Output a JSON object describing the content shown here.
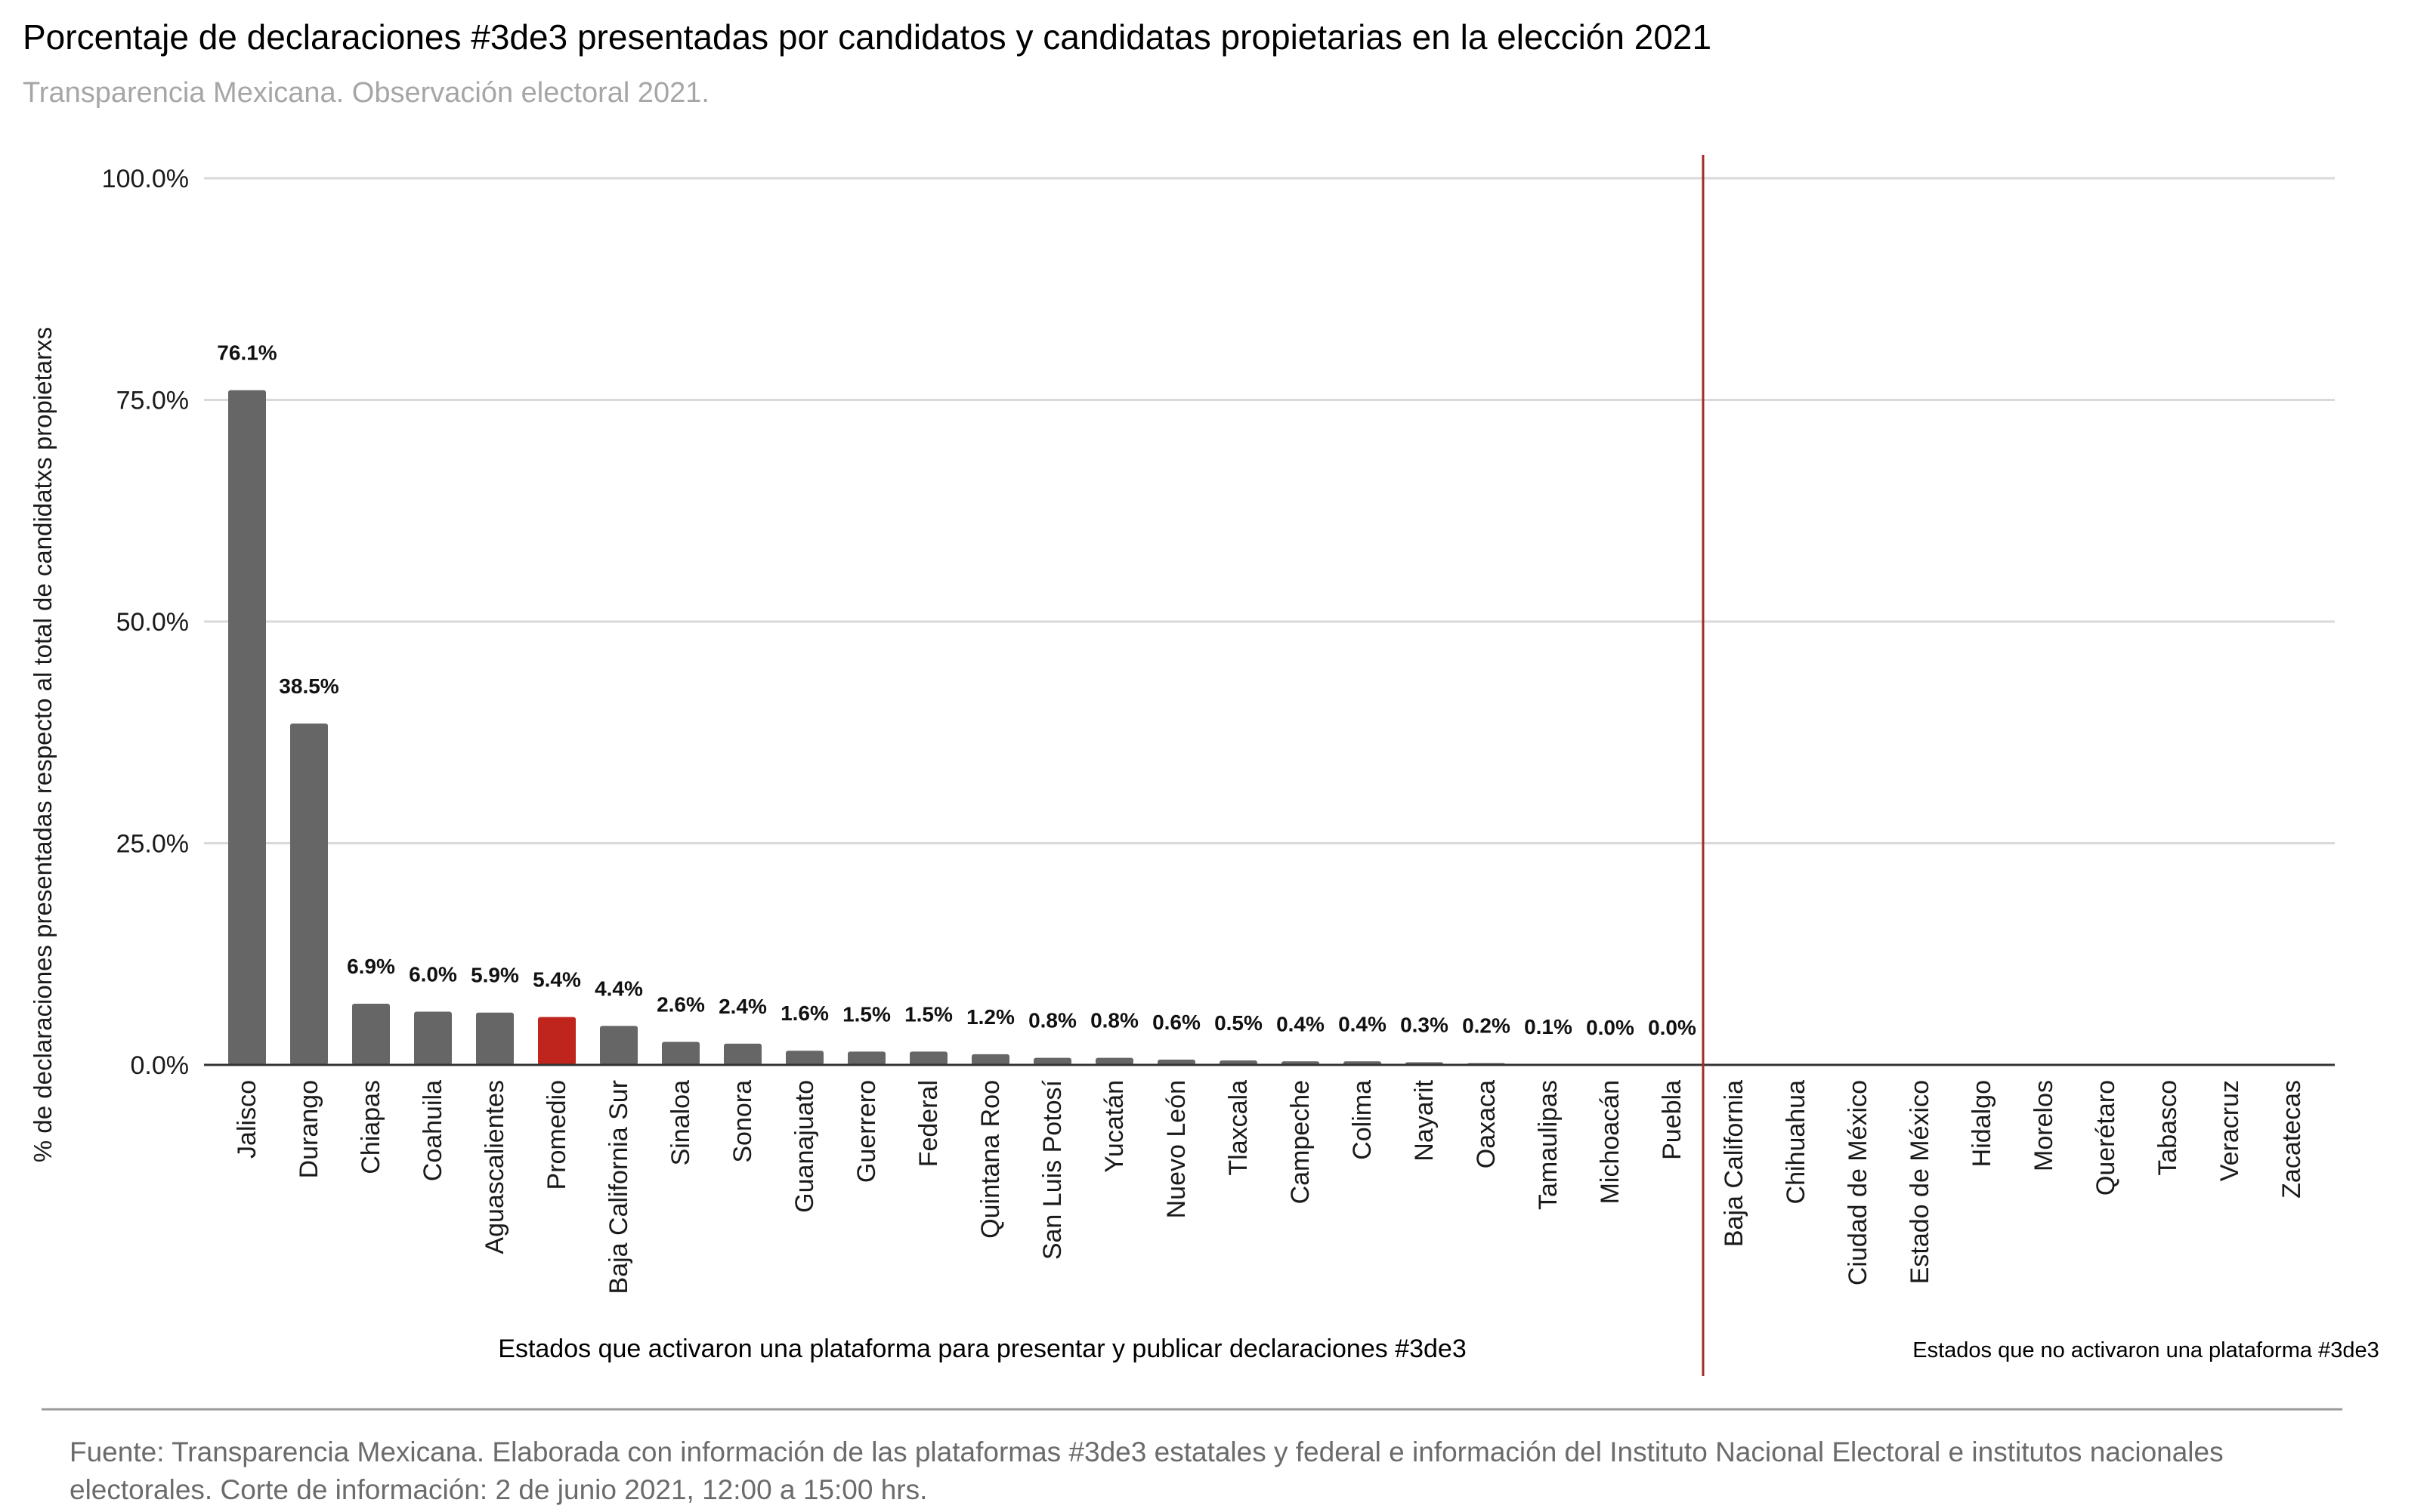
{
  "header": {
    "title": "Porcentaje de declaraciones #3de3 presentadas por candidatos y candidatas propietarias en la elección 2021",
    "subtitle": "Transparencia Mexicana. Observación electoral 2021."
  },
  "chart_data": {
    "type": "bar",
    "ylabel": "% de declaraciones presentadas respecto al total de candidatxs propietarxs",
    "ylim": [
      0,
      100
    ],
    "yticks": [
      "0.0%",
      "25.0%",
      "50.0%",
      "75.0%",
      "100.0%"
    ],
    "ytick_values": [
      0,
      25,
      50,
      75,
      100
    ],
    "grid": true,
    "categories": [
      "Jalisco",
      "Durango",
      "Chiapas",
      "Coahuila",
      "Aguascalientes",
      "Promedio",
      "Baja California Sur",
      "Sinaloa",
      "Sonora",
      "Guanajuato",
      "Guerrero",
      "Federal",
      "Quintana Roo",
      "San Luis Potosí",
      "Yucatán",
      "Nuevo León",
      "Tlaxcala",
      "Campeche",
      "Colima",
      "Nayarit",
      "Oaxaca",
      "Tamaulipas",
      "Michoacán",
      "Puebla",
      "Baja California",
      "Chihuahua",
      "Ciudad de México",
      "Estado de México",
      "Hidalgo",
      "Morelos",
      "Querétaro",
      "Tabasco",
      "Veracruz",
      "Zacatecas"
    ],
    "values": [
      76.1,
      38.5,
      6.9,
      6.0,
      5.9,
      5.4,
      4.4,
      2.6,
      2.4,
      1.6,
      1.5,
      1.5,
      1.2,
      0.8,
      0.8,
      0.6,
      0.5,
      0.4,
      0.4,
      0.3,
      0.2,
      0.1,
      0.0,
      0.0,
      null,
      null,
      null,
      null,
      null,
      null,
      null,
      null,
      null,
      null
    ],
    "data_labels": [
      "76.1%",
      "38.5%",
      "6.9%",
      "6.0%",
      "5.9%",
      "5.4%",
      "4.4%",
      "2.6%",
      "2.4%",
      "1.6%",
      "1.5%",
      "1.5%",
      "1.2%",
      "0.8%",
      "0.8%",
      "0.6%",
      "0.5%",
      "0.4%",
      "0.4%",
      "0.3%",
      "0.2%",
      "0.1%",
      "0.0%",
      "0.0%",
      "",
      "",
      "",
      "",
      "",
      "",
      "",
      "",
      "",
      ""
    ],
    "highlight_category": "Promedio",
    "colors": {
      "bar": "#666666",
      "highlight": "#c0251d",
      "divider": "#a52a2a",
      "grid": "#d9d9d9",
      "axis": "#333333"
    },
    "group_labels": {
      "active": "Estados que activaron una plataforma para presentar y publicar declaraciones #3de3",
      "inactive": "Estados que no activaron una plataforma #3de3"
    }
  },
  "footer": {
    "source": "Fuente: Transparencia Mexicana. Elaborada con información de las plataformas #3de3 estatales y federal e información del Instituto Nacional Electoral e institutos nacionales electorales. Corte de información: 2 de junio 2021, 12:00 a 15:00 hrs."
  }
}
